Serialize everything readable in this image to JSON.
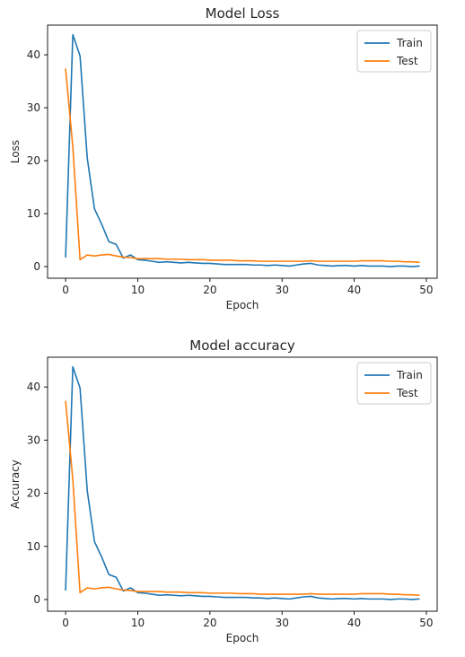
{
  "chart_data": [
    {
      "type": "line",
      "title": "Model Loss",
      "xlabel": "Epoch",
      "ylabel": "Loss",
      "xlim": [
        -2.5,
        51.5
      ],
      "ylim": [
        -2.2,
        45.6
      ],
      "xticks": [
        0,
        10,
        20,
        30,
        40,
        50
      ],
      "yticks": [
        0,
        10,
        20,
        30,
        40
      ],
      "grid": false,
      "legend_position": "top-right",
      "series": [
        {
          "name": "Train",
          "color": "#1f77b4",
          "x": [
            0,
            1,
            2,
            3,
            4,
            5,
            6,
            7,
            8,
            9,
            10,
            11,
            12,
            13,
            14,
            15,
            16,
            17,
            18,
            19,
            20,
            21,
            22,
            23,
            24,
            25,
            26,
            27,
            28,
            29,
            30,
            31,
            32,
            33,
            34,
            35,
            36,
            37,
            38,
            39,
            40,
            41,
            42,
            43,
            44,
            45,
            46,
            47,
            48,
            49
          ],
          "values": [
            1.8,
            43.8,
            39.8,
            20.5,
            10.9,
            8.0,
            4.7,
            4.2,
            1.6,
            2.2,
            1.3,
            1.2,
            1.0,
            0.8,
            0.9,
            0.8,
            0.7,
            0.8,
            0.7,
            0.6,
            0.6,
            0.5,
            0.4,
            0.4,
            0.4,
            0.4,
            0.3,
            0.3,
            0.2,
            0.3,
            0.2,
            0.1,
            0.3,
            0.5,
            0.6,
            0.3,
            0.2,
            0.1,
            0.2,
            0.2,
            0.1,
            0.2,
            0.1,
            0.1,
            0.1,
            0.0,
            0.1,
            0.1,
            0.0,
            0.1
          ]
        },
        {
          "name": "Test",
          "color": "#ff7f0e",
          "x": [
            0,
            1,
            2,
            3,
            4,
            5,
            6,
            7,
            8,
            9,
            10,
            11,
            12,
            13,
            14,
            15,
            16,
            17,
            18,
            19,
            20,
            21,
            22,
            23,
            24,
            25,
            26,
            27,
            28,
            29,
            30,
            31,
            32,
            33,
            34,
            35,
            36,
            37,
            38,
            39,
            40,
            41,
            42,
            43,
            44,
            45,
            46,
            47,
            48,
            49
          ],
          "values": [
            37.3,
            22.6,
            1.3,
            2.2,
            2.0,
            2.2,
            2.3,
            2.0,
            1.8,
            1.7,
            1.5,
            1.5,
            1.5,
            1.5,
            1.4,
            1.4,
            1.4,
            1.3,
            1.3,
            1.3,
            1.2,
            1.2,
            1.2,
            1.2,
            1.1,
            1.1,
            1.1,
            1.0,
            1.0,
            1.0,
            1.0,
            1.0,
            1.0,
            1.0,
            1.1,
            1.0,
            1.0,
            1.0,
            1.0,
            1.0,
            1.0,
            1.1,
            1.1,
            1.1,
            1.1,
            1.0,
            1.0,
            0.9,
            0.9,
            0.8
          ]
        }
      ]
    },
    {
      "type": "line",
      "title": "Model accuracy",
      "xlabel": "Epoch",
      "ylabel": "Accuracy",
      "xlim": [
        -2.5,
        51.5
      ],
      "ylim": [
        -2.2,
        45.6
      ],
      "xticks": [
        0,
        10,
        20,
        30,
        40,
        50
      ],
      "yticks": [
        0,
        10,
        20,
        30,
        40
      ],
      "grid": false,
      "legend_position": "top-right",
      "series": [
        {
          "name": "Train",
          "color": "#1f77b4",
          "x": [
            0,
            1,
            2,
            3,
            4,
            5,
            6,
            7,
            8,
            9,
            10,
            11,
            12,
            13,
            14,
            15,
            16,
            17,
            18,
            19,
            20,
            21,
            22,
            23,
            24,
            25,
            26,
            27,
            28,
            29,
            30,
            31,
            32,
            33,
            34,
            35,
            36,
            37,
            38,
            39,
            40,
            41,
            42,
            43,
            44,
            45,
            46,
            47,
            48,
            49
          ],
          "values": [
            1.8,
            43.8,
            39.8,
            20.5,
            10.9,
            8.0,
            4.7,
            4.2,
            1.6,
            2.2,
            1.3,
            1.2,
            1.0,
            0.8,
            0.9,
            0.8,
            0.7,
            0.8,
            0.7,
            0.6,
            0.6,
            0.5,
            0.4,
            0.4,
            0.4,
            0.4,
            0.3,
            0.3,
            0.2,
            0.3,
            0.2,
            0.1,
            0.3,
            0.5,
            0.6,
            0.3,
            0.2,
            0.1,
            0.2,
            0.2,
            0.1,
            0.2,
            0.1,
            0.1,
            0.1,
            0.0,
            0.1,
            0.1,
            0.0,
            0.1
          ]
        },
        {
          "name": "Test",
          "color": "#ff7f0e",
          "x": [
            0,
            1,
            2,
            3,
            4,
            5,
            6,
            7,
            8,
            9,
            10,
            11,
            12,
            13,
            14,
            15,
            16,
            17,
            18,
            19,
            20,
            21,
            22,
            23,
            24,
            25,
            26,
            27,
            28,
            29,
            30,
            31,
            32,
            33,
            34,
            35,
            36,
            37,
            38,
            39,
            40,
            41,
            42,
            43,
            44,
            45,
            46,
            47,
            48,
            49
          ],
          "values": [
            37.3,
            22.6,
            1.3,
            2.2,
            2.0,
            2.2,
            2.3,
            2.0,
            1.8,
            1.7,
            1.5,
            1.5,
            1.5,
            1.5,
            1.4,
            1.4,
            1.4,
            1.3,
            1.3,
            1.3,
            1.2,
            1.2,
            1.2,
            1.2,
            1.1,
            1.1,
            1.1,
            1.0,
            1.0,
            1.0,
            1.0,
            1.0,
            1.0,
            1.0,
            1.1,
            1.0,
            1.0,
            1.0,
            1.0,
            1.0,
            1.0,
            1.1,
            1.1,
            1.1,
            1.1,
            1.0,
            1.0,
            0.9,
            0.9,
            0.8
          ]
        }
      ]
    }
  ]
}
